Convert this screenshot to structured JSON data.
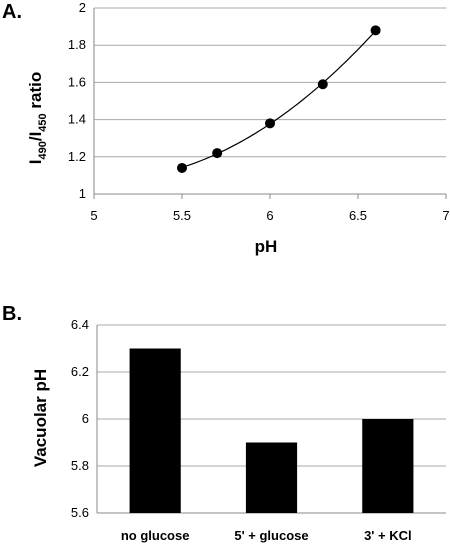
{
  "chart_data": [
    {
      "panel_label": "A.",
      "type": "scatter",
      "x": [
        5.5,
        5.7,
        6.0,
        6.3,
        6.6
      ],
      "y": [
        1.14,
        1.22,
        1.38,
        1.59,
        1.88
      ],
      "trendline": true,
      "xlabel": "pH",
      "ylabel": "I490/I450 ratio",
      "ylabel_parts": {
        "i1": "I",
        "sub1": "490",
        "slash": "/I",
        "sub2": "450",
        "rest": " ratio"
      },
      "xlim": [
        5,
        7
      ],
      "ylim": [
        1,
        2
      ],
      "xticks": [
        "5",
        "5.5",
        "6",
        "6.5",
        "7"
      ],
      "yticks": [
        "1",
        "1.2",
        "1.4",
        "1.6",
        "1.8",
        "2"
      ],
      "grid": true,
      "color": "#000000"
    },
    {
      "panel_label": "B.",
      "type": "bar",
      "categories": [
        "no glucose",
        "5' + glucose",
        "3' + KCl"
      ],
      "values": [
        6.3,
        5.9,
        6.0
      ],
      "xlabel": "",
      "ylabel": "Vacuolar pH",
      "ylim": [
        5.6,
        6.4
      ],
      "yticks": [
        "5.6",
        "5.8",
        "6",
        "6.2",
        "6.4"
      ],
      "grid": true,
      "color": "#000000"
    }
  ]
}
